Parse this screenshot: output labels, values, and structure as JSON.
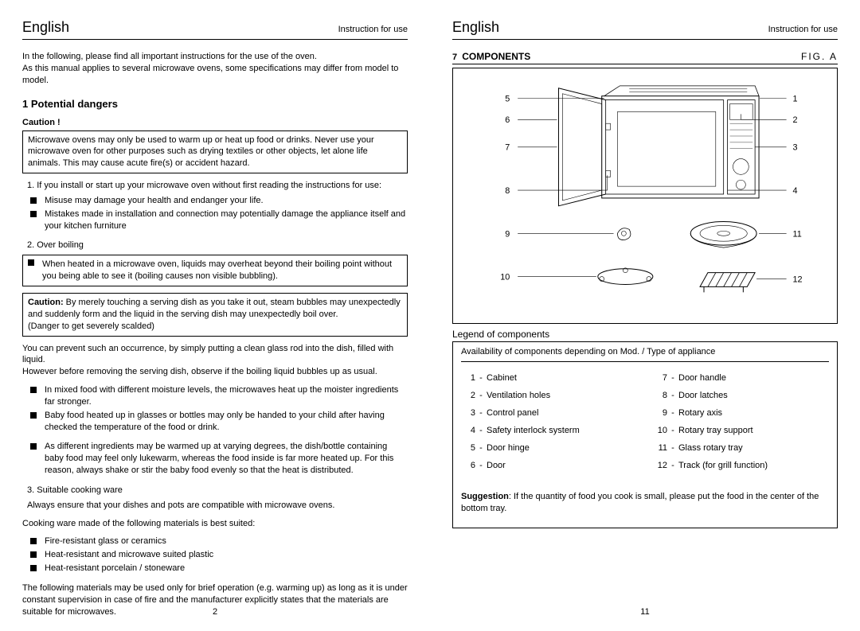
{
  "colors": {
    "background": "#ffffff",
    "text": "#000000",
    "border": "#000000"
  },
  "typography": {
    "body_fontsize": 11,
    "header_fontsize": 18,
    "section_fontsize": 13
  },
  "left_page": {
    "header_lang": "English",
    "header_sub": "Instruction for use",
    "intro": "In the following, please find all important instructions for the  use of  the oven.\nAs this manual  applies  to several  microwave ovens,  some specifications  may  differ from  model to model.",
    "section_num": "1",
    "section_title": "Potential dangers",
    "caution_label": "Caution !",
    "caution_box": "Microwave ovens may only be used to  warm up or heat up food or drinks. Never use your microwave oven for other purposes such as drying textiles or other objects, let alone life animals. This may cause acute  fire(s) or accident hazard.",
    "item1_num": "1. If you install or start up your  microwave oven without first reading the instructions for use:",
    "item1_bullets": [
      "Misuse may damage your health and endanger your life.",
      "Mistakes made in installation and connection may potentially damage the appliance itself and your kitchen furniture"
    ],
    "item2_num": "2.  Over boiling",
    "item2_box": "When heated in a microwave oven, liquids  may overheat beyond their boiling point without you being able to see it (boiling causes non visible bubbling).",
    "caution_box2": "Caution: By merely touching a serving  dish as you take it out, steam bubbles  may unexpectedly and suddenly form and the liquid in the serving dish  may unexpectedly boil over.\n(Danger to get severely scalded)",
    "prevent": "You can prevent such an occurrence, by simply putting a clean glass rod into the dish, filled with liquid.\nHowever before removing the serving dish,  observe if the boiling  liquid bubbles up as usual.",
    "mixed_bullets": [
      "In mixed food with different moisture levels, the microwaves heat up  the moister ingredients far stronger.",
      "Baby food heated up in glasses or bottles may only be handed to your child after having checked the temperature of the food or drink."
    ],
    "baby_bullets": [
      "As different ingredients may be warmed up at varying degrees, the dish/bottle containing baby food may feel only  lukewarm, whereas the food  inside is far more heated up. For this reason, always shake or stir the baby food evenly so that  the heat is distributed."
    ],
    "item3_num": "3. Suitable cooking ware",
    "item3_line": "Always ensure that your dishes and pots are compatible  with microwave ovens.",
    "cooking_intro": "Cooking ware made of the following materials is best suited:",
    "material_bullets": [
      "Fire-resistant glass  or ceramics",
      "Heat-resistant and  microwave suited plastic",
      "Heat-resistant porcelain /  stoneware"
    ],
    "following_materials": "The following materials may be used only for brief operation (e.g. warming up) as long as it is under constant supervision in case of fire  and the manufacturer explicitly states that the materials are suitable for microwaves.",
    "page_num": "2"
  },
  "right_page": {
    "header_lang": "English",
    "header_sub": "Instruction for use",
    "section_num": "7",
    "section_title": "COMPONENTS",
    "fig_label": "FIG.  A",
    "diagram_labels": {
      "left": [
        "5",
        "6",
        "7",
        "8",
        "9",
        "10"
      ],
      "right": [
        "1",
        "2",
        "3",
        "4",
        "11",
        "12"
      ]
    },
    "legend_title": "Legend of components",
    "availability": "Availability of components depending on Mod. / Type of appliance",
    "legend_left": [
      {
        "n": "1",
        "label": "Cabinet"
      },
      {
        "n": "2",
        "label": "Ventilation holes"
      },
      {
        "n": "3",
        "label": "Control panel"
      },
      {
        "n": "4",
        "label": "Safety interlock systerm"
      },
      {
        "n": "5",
        "label": "Door hinge"
      },
      {
        "n": "6",
        "label": "Door"
      }
    ],
    "legend_right": [
      {
        "n": "7",
        "label": "Door handle"
      },
      {
        "n": "8",
        "label": "Door latches"
      },
      {
        "n": "9",
        "label": "Rotary axis"
      },
      {
        "n": "10",
        "label": "Rotary tray support"
      },
      {
        "n": "11",
        "label": "Glass rotary tray"
      },
      {
        "n": "12",
        "label": "Track (for grill function)"
      }
    ],
    "suggestion_label": "Suggestion",
    "suggestion_text": ": If the quantity of food you cook is small, please put the food in the center of the bottom tray.",
    "page_num": "11"
  }
}
